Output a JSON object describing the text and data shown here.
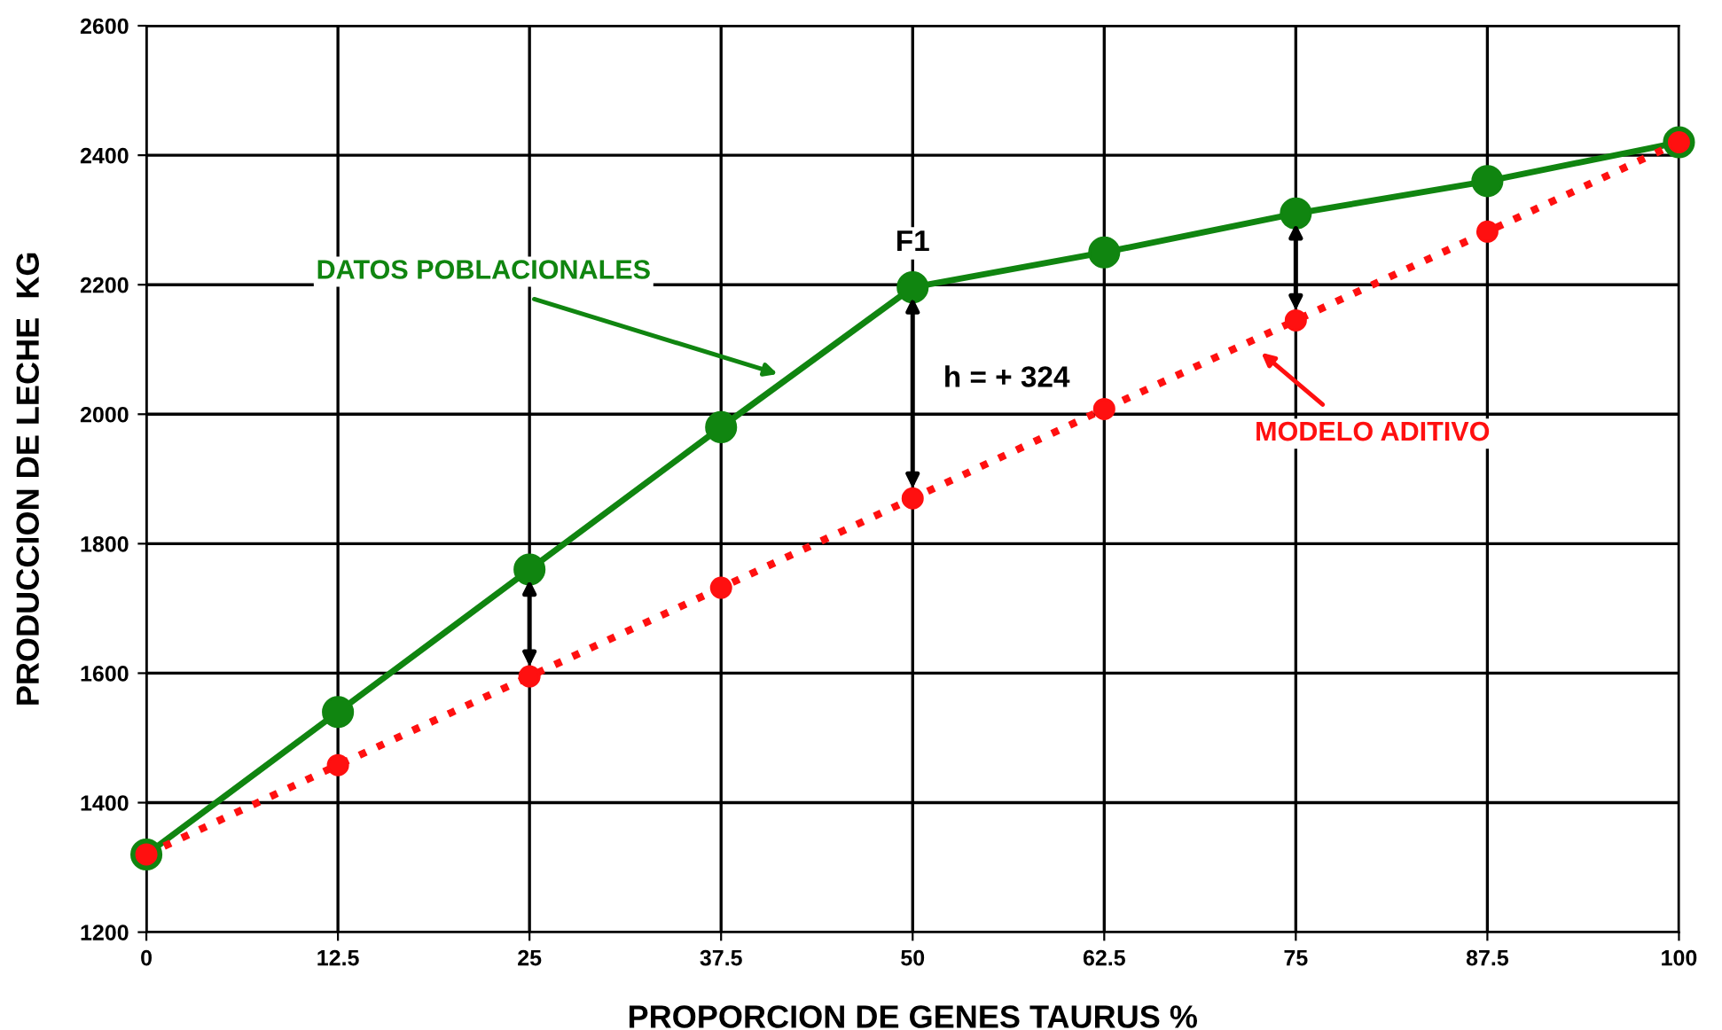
{
  "chart_data": {
    "type": "line",
    "xlabel": "PROPORCION DE GENES TAURUS %",
    "ylabel": "PRODUCCION DE LECHE  KG",
    "x": [
      0,
      12.5,
      25,
      37.5,
      50,
      62.5,
      75,
      87.5,
      100
    ],
    "series": [
      {
        "name": "DATOS POBLACIONALES",
        "color": "#108510",
        "line_style": "solid",
        "values": [
          1320,
          1540,
          1760,
          1980,
          2196,
          2250,
          2310,
          2360,
          2420
        ]
      },
      {
        "name": "MODELO ADITIVO",
        "color": "#ff1010",
        "line_style": "dotted",
        "values": [
          1320,
          1458,
          1595,
          1732,
          1870,
          2008,
          2145,
          2282,
          2420
        ]
      }
    ],
    "annotations": [
      "F1",
      "h = + 324"
    ],
    "xlim": [
      0,
      100
    ],
    "xticks": [
      0,
      12.5,
      25,
      37.5,
      50,
      62.5,
      75,
      87.5,
      100
    ],
    "ylim": [
      1200,
      2600
    ],
    "yticks": [
      1200,
      1400,
      1600,
      1800,
      2000,
      2200,
      2400,
      2600
    ],
    "grid": true,
    "marker": "circle"
  }
}
